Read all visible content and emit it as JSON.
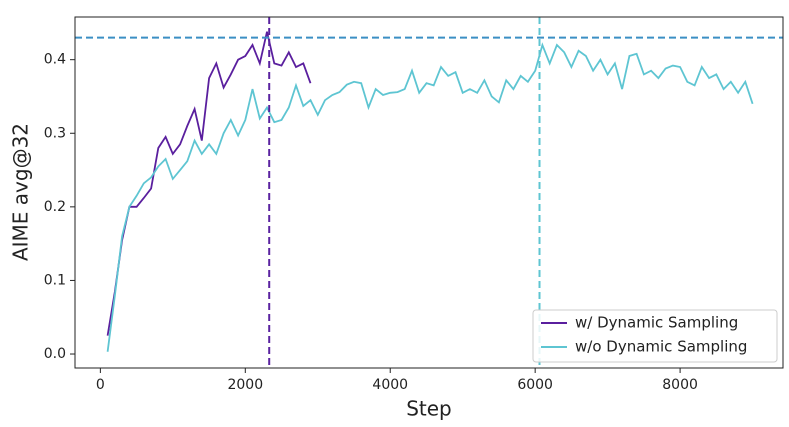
{
  "chart_data": {
    "type": "line",
    "x_label": "Step",
    "y_label": "AIME avg@32",
    "xlim": [
      -350,
      9420
    ],
    "ylim": [
      -0.019,
      0.458
    ],
    "xticks": [
      0,
      2000,
      4000,
      6000,
      8000
    ],
    "yticks": [
      {
        "value": 0,
        "label": "0.0"
      },
      0.1,
      0.2,
      0.3,
      0.4
    ],
    "legend": "lower right",
    "hlines": [
      {
        "value": 0.43,
        "color": "#3b8fc4"
      }
    ],
    "vlines": [
      {
        "value": 2330,
        "color": "#5a23a0"
      },
      {
        "value": 6060,
        "color": "#5ec5d2"
      }
    ],
    "series": [
      {
        "name": "w/ Dynamic Sampling",
        "color": "#5a1f9e",
        "x": [
          100,
          200,
          300,
          400,
          500,
          600,
          700,
          800,
          900,
          1000,
          1100,
          1200,
          1300,
          1400,
          1500,
          1600,
          1700,
          1800,
          1900,
          2000,
          2100,
          2200,
          2300,
          2400,
          2500,
          2600,
          2700,
          2800,
          2900
        ],
        "values": [
          0.025,
          0.085,
          0.155,
          0.2,
          0.2,
          0.212,
          0.225,
          0.28,
          0.295,
          0.272,
          0.285,
          0.31,
          0.333,
          0.29,
          0.375,
          0.395,
          0.362,
          0.38,
          0.4,
          0.405,
          0.42,
          0.395,
          0.438,
          0.395,
          0.392,
          0.41,
          0.39,
          0.395,
          0.368
        ]
      },
      {
        "name": "w/o Dynamic Sampling",
        "color": "#5ec5d2",
        "x": [
          100,
          200,
          300,
          400,
          500,
          600,
          700,
          800,
          900,
          1000,
          1100,
          1200,
          1300,
          1400,
          1500,
          1600,
          1700,
          1800,
          1900,
          2000,
          2100,
          2200,
          2300,
          2400,
          2500,
          2600,
          2700,
          2800,
          2900,
          3000,
          3100,
          3200,
          3300,
          3400,
          3500,
          3600,
          3700,
          3800,
          3900,
          4000,
          4100,
          4200,
          4300,
          4400,
          4500,
          4600,
          4700,
          4800,
          4900,
          5000,
          5100,
          5200,
          5300,
          5400,
          5500,
          5600,
          5700,
          5800,
          5900,
          6000,
          6100,
          6200,
          6300,
          6400,
          6500,
          6600,
          6700,
          6800,
          6900,
          7000,
          7100,
          7200,
          7300,
          7400,
          7500,
          7600,
          7700,
          7800,
          7900,
          8000,
          8100,
          8200,
          8300,
          8400,
          8500,
          8600,
          8700,
          8800,
          8900,
          9000
        ],
        "values": [
          0.003,
          0.08,
          0.16,
          0.2,
          0.215,
          0.232,
          0.24,
          0.255,
          0.265,
          0.238,
          0.25,
          0.262,
          0.29,
          0.272,
          0.285,
          0.272,
          0.3,
          0.318,
          0.297,
          0.318,
          0.36,
          0.32,
          0.335,
          0.315,
          0.318,
          0.335,
          0.365,
          0.337,
          0.345,
          0.325,
          0.345,
          0.352,
          0.356,
          0.366,
          0.37,
          0.368,
          0.335,
          0.36,
          0.352,
          0.355,
          0.356,
          0.36,
          0.385,
          0.355,
          0.368,
          0.365,
          0.39,
          0.378,
          0.383,
          0.355,
          0.36,
          0.355,
          0.372,
          0.35,
          0.342,
          0.372,
          0.36,
          0.378,
          0.37,
          0.385,
          0.42,
          0.395,
          0.42,
          0.41,
          0.39,
          0.412,
          0.405,
          0.385,
          0.4,
          0.38,
          0.395,
          0.36,
          0.405,
          0.408,
          0.38,
          0.385,
          0.375,
          0.388,
          0.392,
          0.39,
          0.37,
          0.365,
          0.39,
          0.375,
          0.38,
          0.36,
          0.37,
          0.355,
          0.37,
          0.34
        ]
      }
    ]
  }
}
